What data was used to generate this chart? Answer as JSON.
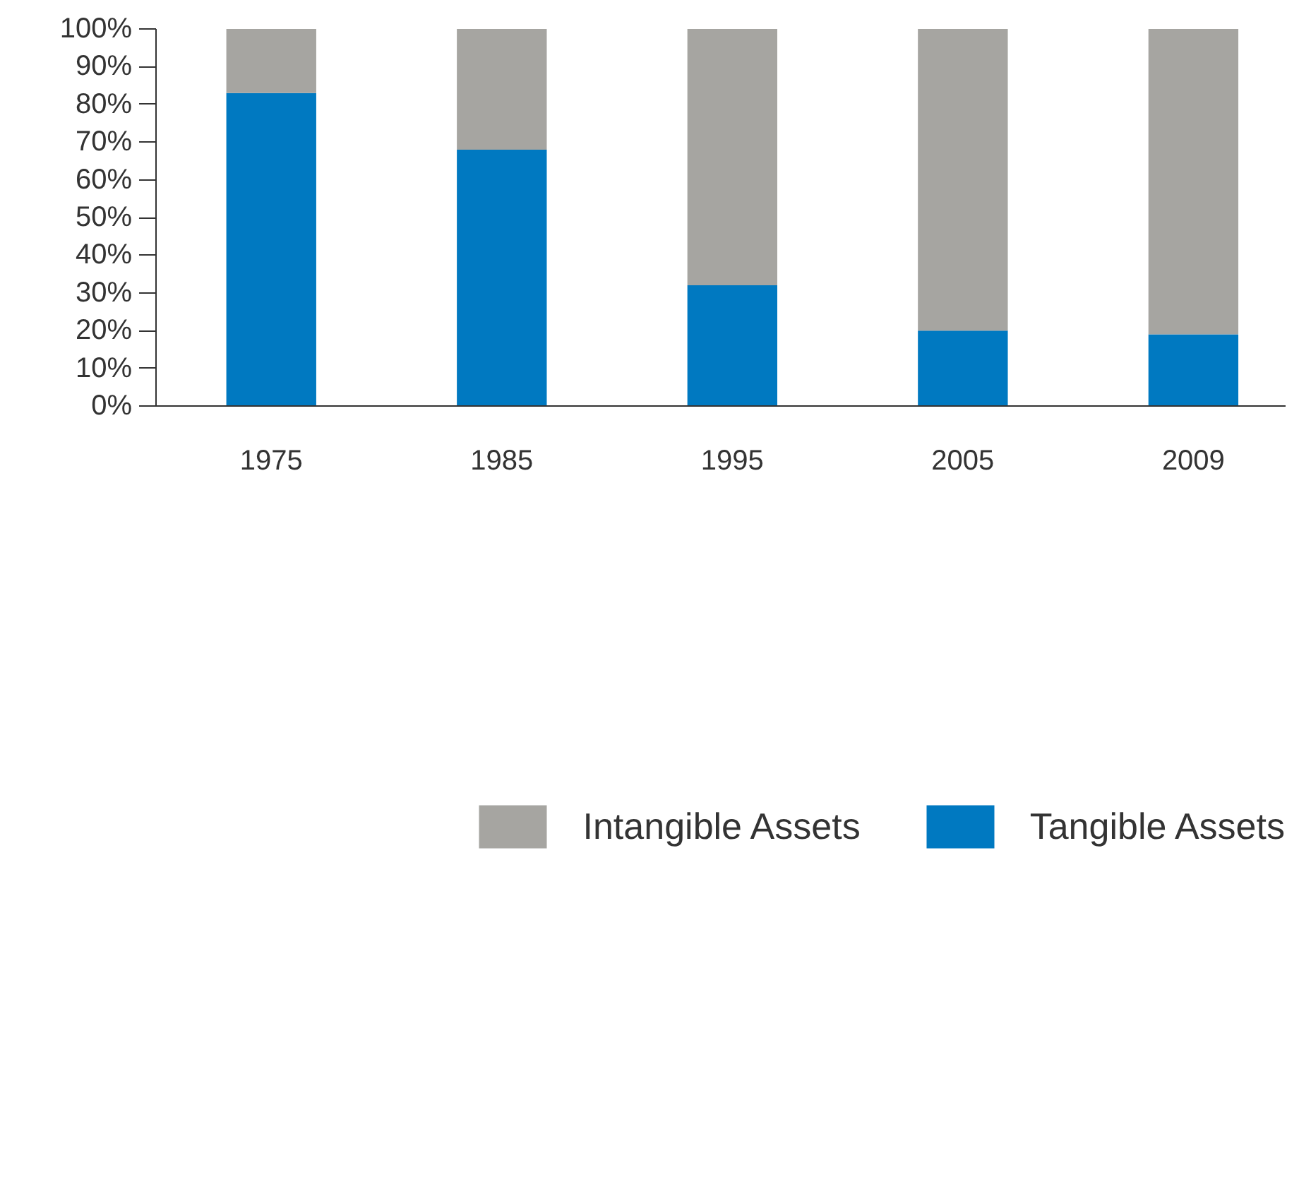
{
  "chart_data": {
    "type": "bar",
    "stacked": true,
    "categories": [
      "1975",
      "1985",
      "1995",
      "2005",
      "2009"
    ],
    "series": [
      {
        "name": "Tangible Assets",
        "color": "#0079c1",
        "values": [
          83,
          68,
          32,
          20,
          19
        ]
      },
      {
        "name": "Intangible Assets",
        "color": "#a6a5a1",
        "values": [
          17,
          32,
          68,
          80,
          81
        ]
      }
    ],
    "ylim": [
      0,
      100
    ],
    "yticks": [
      {
        "value": 0,
        "label": "0%"
      },
      {
        "value": 10,
        "label": "10%"
      },
      {
        "value": 20,
        "label": "20%"
      },
      {
        "value": 30,
        "label": "30%"
      },
      {
        "value": 40,
        "label": "40%"
      },
      {
        "value": 50,
        "label": "50%"
      },
      {
        "value": 60,
        "label": "60%"
      },
      {
        "value": 70,
        "label": "70%"
      },
      {
        "value": 80,
        "label": "80%"
      },
      {
        "value": 90,
        "label": "90%"
      },
      {
        "value": 100,
        "label": "100%"
      }
    ],
    "grid": false,
    "legend": "bottom"
  }
}
